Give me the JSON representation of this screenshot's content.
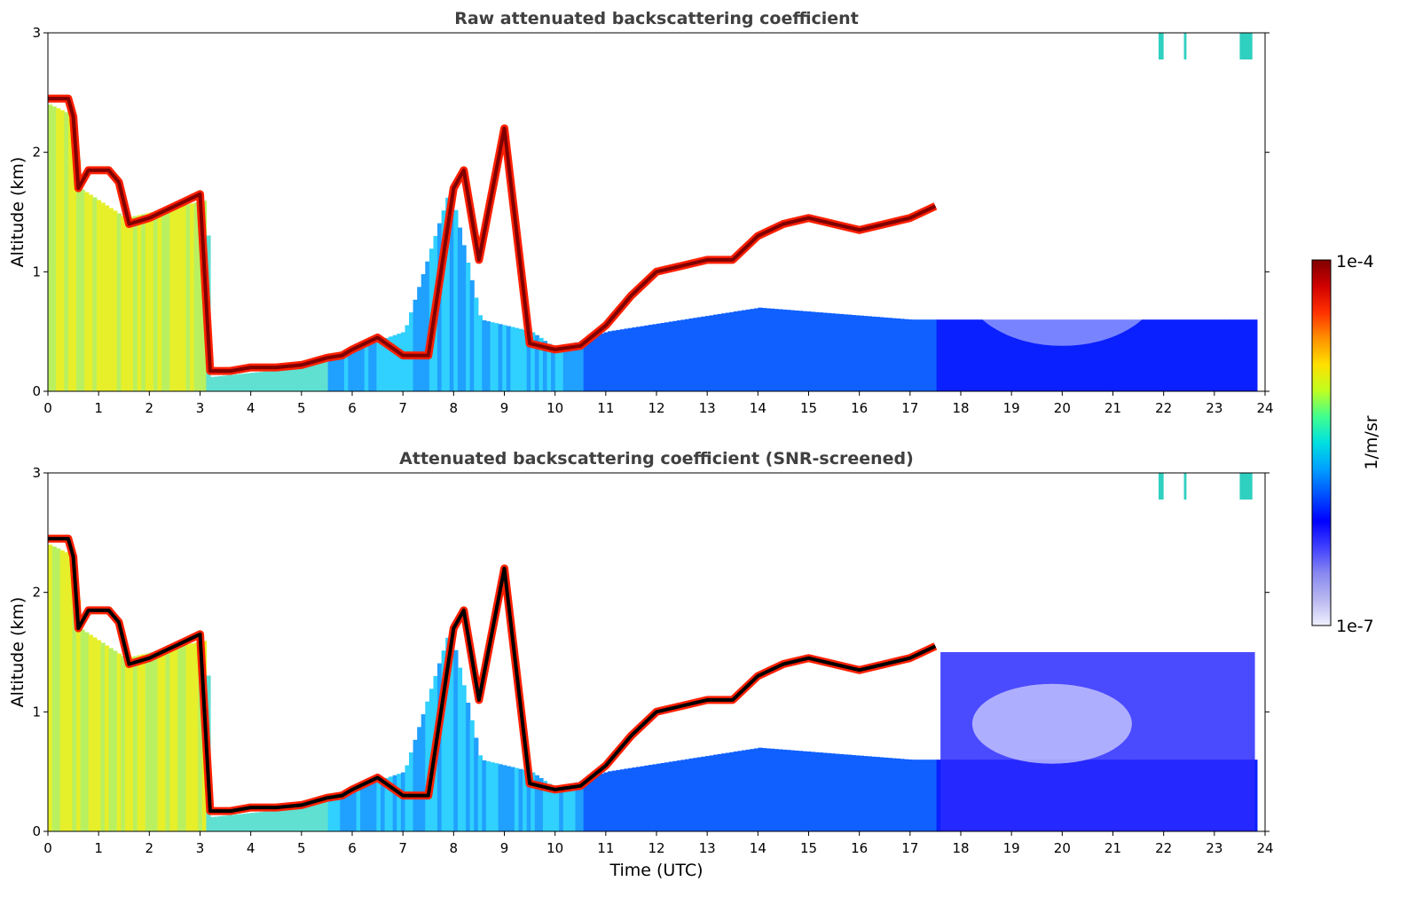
{
  "chart_data": [
    {
      "type": "heatmap",
      "title": "Raw attenuated backscattering coefficient",
      "xlabel": "",
      "ylabel": "Altitude (km)",
      "x_ticks": [
        "0",
        "1",
        "2",
        "3",
        "4",
        "5",
        "6",
        "7",
        "8",
        "9",
        "10",
        "11",
        "12",
        "13",
        "14",
        "15",
        "16",
        "17",
        "18",
        "19",
        "20",
        "21",
        "22",
        "23",
        "24"
      ],
      "y_ticks": [
        "0",
        "1",
        "2",
        "3"
      ],
      "xlim": [
        0,
        24
      ],
      "ylim": [
        0,
        3
      ],
      "description_series": [
        {
          "name": "",
          "x": [
            0,
            0.4,
            0.5,
            0.6,
            0.8,
            1.0,
            1.2,
            1.4,
            1.6,
            2.0,
            2.5,
            3.0,
            3.2,
            3.6,
            4.0,
            4.5,
            5.0,
            5.5,
            5.8,
            6.0,
            6.5,
            7.0,
            7.5,
            8.0,
            8.2,
            8.5,
            9.0,
            9.5,
            10.0,
            10.5,
            11.0,
            11.5,
            12.0,
            12.5,
            13.0,
            13.5,
            14.0,
            14.5,
            15.0,
            15.5,
            16.0,
            16.5,
            17.0,
            17.5
          ],
          "y": [
            2.45,
            2.45,
            2.3,
            1.7,
            1.85,
            1.85,
            1.85,
            1.75,
            1.4,
            1.45,
            1.55,
            1.65,
            0.17,
            0.17,
            0.2,
            0.2,
            0.22,
            0.28,
            0.3,
            0.35,
            0.45,
            0.3,
            0.3,
            1.7,
            1.85,
            1.1,
            2.2,
            0.4,
            0.35,
            0.38,
            0.55,
            0.8,
            1.0,
            1.05,
            1.1,
            1.1,
            1.3,
            1.4,
            1.45,
            1.4,
            1.35,
            1.4,
            1.45,
            1.55
          ]
        }
      ]
    },
    {
      "type": "heatmap",
      "title": "Attenuated backscattering coefficient (SNR-screened)",
      "xlabel": "Time (UTC)",
      "ylabel": "Altitude (km)",
      "x_ticks": [
        "0",
        "1",
        "2",
        "3",
        "4",
        "5",
        "6",
        "7",
        "8",
        "9",
        "10",
        "11",
        "12",
        "13",
        "14",
        "15",
        "16",
        "17",
        "18",
        "19",
        "20",
        "21",
        "22",
        "23",
        "24"
      ],
      "y_ticks": [
        "0",
        "1",
        "2",
        "3"
      ],
      "xlim": [
        0,
        24
      ],
      "ylim": [
        0,
        3
      ]
    }
  ],
  "colorbar": {
    "label": "1/m/sr",
    "max_label": "1e-4",
    "min_label": "1e-7",
    "scale": "log",
    "colors": [
      "#f0f0ff",
      "#b8b8f0",
      "#8888f0",
      "#4040ff",
      "#0000ff",
      "#0050ff",
      "#00a0ff",
      "#00e0e0",
      "#40ff90",
      "#c0ff20",
      "#ffe000",
      "#ff9000",
      "#ff3000",
      "#d00000",
      "#800000"
    ]
  }
}
